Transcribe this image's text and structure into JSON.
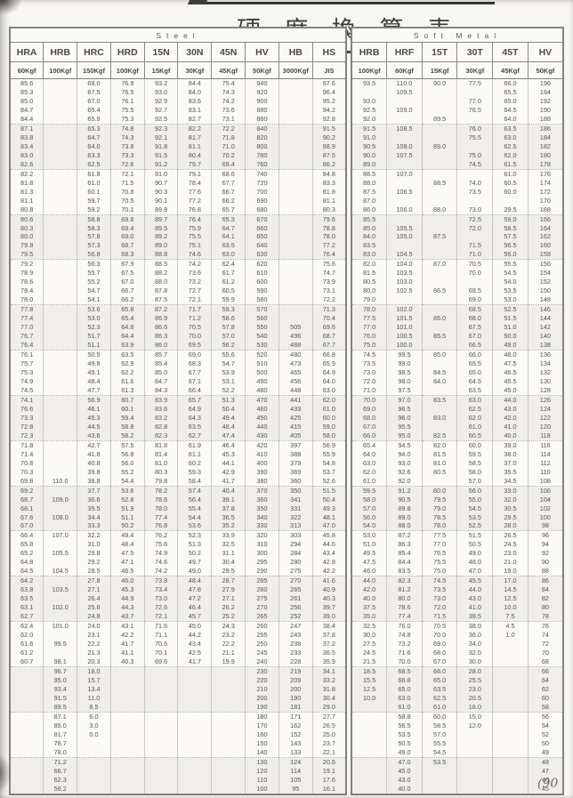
{
  "page": {
    "title": "硬 度 換 算 表",
    "page_marker": "(90"
  },
  "steel": {
    "section_title": "Steel",
    "columns": [
      "HRA",
      "HRB",
      "HRC",
      "HRD",
      "15N",
      "30N",
      "45N",
      "HV",
      "HB",
      "HS"
    ],
    "loads": [
      "60Kgf",
      "100Kgf",
      "150Kgf",
      "100Kgf",
      "15Kgf",
      "30Kgf",
      "45Kgf",
      "50Kgf",
      "3000Kgf",
      "JIS"
    ],
    "rows": [
      "85.6||68.0|76.9|93.2|84.4|75.4|940||97.6",
      "85.3||67.5|76.5|93.0|84.0|74.3|920||96.4",
      "85.0||67.0|76.1|92.9|83.6|74.2|900||95.2",
      "84.7||65.4|75.5|92.7|83.1|73.6|880||94.2",
      "84.4||65.9|75.3|92.5|82.7|73.1|860||92.8",
      "87.1||65.3|74.8|92.3|82.2|72.2|840||91.5",
      "83.8||64.7|74.3|92.1|81.7|71.8|820||90.2",
      "83.4||64.0|73.8|91.8|81.1|71.0|800||88.9",
      "83.0||63.3|73.3|91.5|80.4|70.2|780||87.5",
      "82.6||62.5|72.6|91.2|79.7|69.4|760||86.2",
      "82.2||61.8|72.1|91.0|79.1|68.6|740||84.8",
      "81.8||61.0|71.5|90.7|78.4|67.7|720||83.3",
      "81.3||60.1|70.8|90.3|77.6|66.7|700||81.8",
      "81.1||59.7|70.5|90.1|77.2|66.2|690||81.1",
      "80.8||59.2|70.1|89.8|76.8|65.7|680||80.3",
      "80.6||58.8|69.8|89.7|76.4|65.3|670||79.6",
      "80.3||58.3|69.4|89.5|75.9|64.7|660||78.8",
      "80.0||57.8|69.0|89.2|75.5|64.1|650||78.0",
      "79.8||57.3|68.7|89.0|75.1|63.5|640||77.2",
      "79.5||56.8|68.3|88.8|74.6|63.0|630||76.4",
      "79.2||56.3|67.9|88.5|74.2|62.4|620||75.6",
      "78.9||55.7|67.5|88.2|73.6|61.7|610||74.7",
      "78.6||55.2|67.0|88.0|73.2|61.2|600||73.9",
      "78.4||54.7|66.7|87.8|72.7|60.5|590||73.1",
      "78.0||54.1|66.2|87.5|72.1|59.9|580||72.2",
      "77.8||53.6|65.8|87.2|71.7|59.3|570||71.3",
      "77.4||53.0|65.4|86.9|71.2|58.6|560||70.4",
      "77.0||52.3|64.8|86.6|70.5|57.8|550|505|69.6",
      "76.7||51.7|64.4|86.3|70.0|57.0|540|496|68.7",
      "76.4||51.1|63.9|86.0|69.5|56.2|530|488|67.7",
      "76.1||50.5|63.5|85.7|69.0|55.6|520|480|66.8",
      "75.7||49.8|62.9|85.4|68.3|54.7|510|473|65.9",
      "75.3||49.1|62.2|85.0|67.7|53.9|500|465|64.9",
      "74.9||48.4|61.6|84.7|67.1|53.1|490|456|64.0",
      "74.5||47.7|61.3|84.3|66.4|52.2|480|448|63.0",
      "74.1||56.9|60.7|83.9|65.7|51.3|470|441|62.0",
      "76.6||46.1|60.1|83.6|64.9|50.4|460|433|61.0",
      "73.3||45.3|59.4|83.2|64.3|49.4|450|425|60.0",
      "72.8||44.5|58.8|82.8|63.5|48.4|440|415|59.0",
      "72.3||43.6|58.2|82.3|62.7|47.4|430|405|58.0",
      "71.8||42.7|57.5|81.8|61.9|46.4|420|397|56.9",
      "71.4||41.8|56.8|81.4|61.1|45.3|410|388|55.9",
      "70.8||40.8|56.0|81.0|60.2|44.1|400|379|54.8",
      "70.3||39.8|55.2|80.3|59.3|42.9|390|369|53.7",
      "69.8|110.0|38.8|54.4|79.8|58.4|41.7|380|360|52.6",
      "69.2||37.7|53.6|78.2|57.4|40.4|370|350|51.5",
      "68.7|109.0|36.6|52.8|78.6|56.4|39.1|360|341|50.4",
      "68.1||35.5|51.9|78.0|55.4|37.8|350|331|49.3",
      "67.6|108.0|34.4|51.1|77.4|54.4|36.5|340|322|48.1",
      "67.0||33.3|50.2|76.8|53.6|35.2|330|313|47.0",
      "66.4|107.0|32.2|49.4|76.2|52.3|33.9|320|303|45.8",
      "65.8||31.0|48.4|75.6|51.3|32.5|310|294|44.6",
      "65.2|105.5|29.8|47.5|74.9|50.2|31.1|300|284|43.4",
      "64.8||29.2|47.1|74.6|49.7|30.4|295|280|42.8",
      "64.5|104.5|28.5|46.5|74.2|49.0|29.5|290|275|42.2",
      "64.2||27.8|46.0|73.8|48.4|28.7|285|270|41.6",
      "63.8|103.5|27.1|45.3|73.4|47.8|27.9|280|265|40.9",
      "63.5||26.4|44.9|73.0|47.2|27.1|275|261|40.3",
      "63.1|102.0|25.6|44.3|72.6|46.4|26.2|270|256|39.7",
      "62.7||24.8|43.7|72.1|45.7|25.2|265|252|39.0",
      "62.4|101.0|24.0|43.1|71.6|45.0|24.3|260|247|38.4",
      "62.0||23.1|42.2|71.1|44.2|23.2|255|243|37.8",
      "61.6|99.5|22.2|41.7|70.6|43.4|22.2|250|238|37.2",
      "61.2||21.3|41.1|70.1|42.5|21.1|245|233|36.5",
      "60.7|98.1|20.3|40.3|69.6|41.7|19.9|240|228|35.9",
      "|96.7|18.0|||||230|219|34.1",
      "|95.0|15.7|||||220|209|33.2",
      "|93.4|13.4|||||210|200|31.8",
      "|91.5|11.0|||||200|190|30.4",
      "|89.5|8.5|||||190|181|29.0",
      "|87.1|6.0|||||180|171|27.7",
      "|85.0|3.0|||||170|162|26.5",
      "|81.7|0.0|||||160|152|25.0",
      "|78.7||||||150|143|23.7",
      "|78.0||||||140|133|22.1",
      "|71.2||||||130|124|20.6",
      "|66.7||||||120|114|19.1",
      "|62.3||||||110|105|17.6",
      "|56.2||||||100|95|16.1"
    ]
  },
  "soft_metal": {
    "section_title": "Soft Metal",
    "columns": [
      "HRB",
      "HRF",
      "15T",
      "30T",
      "45T",
      "HV"
    ],
    "loads": [
      "100Kgf",
      "60Kgf",
      "15Kgf",
      "30Kgf",
      "45Kgf",
      "50Kgf"
    ],
    "rows": [
      "93.5|110.0|90.0|77.5|66.0|196",
      "|109.5|||65.5|194",
      "93.0|||77.0|65.0|192",
      "92.5|109.0||76.5|64.5|190",
      "92.0||89.5||64.0|188",
      "91.5|108.5||76.0|63.5|186",
      "91.0|||75.5|63.0|184",
      "90.5|108.0|89.0||62.5|182",
      "90.0|107.5||75.0|62.0|180",
      "89.0|||74.5|61.5|178",
      "88.5|107.0|||61.0|176",
      "88.0||88.5|74.0|60.5|174",
      "87.5|106.5||73.5|60.0|172",
      "87.0|||||170",
      "86.0|106.0|88.0|73.0|29.5|168",
      "85.5|||72.5|59.0|166",
      "85.0|105.5||72.0|58.5|164",
      "84.0|105.0|87.5||57.5|162",
      "83.5|||71.5|56.5|160",
      "83.0|104.5||71.0|56.0|158",
      "82.0|104.0|87.0|70.5|55.5|156",
      "81.5|103.5||70.0|54.5|154",
      "80.5|103.0|||54.0|152",
      "80.0|102.5|86.5|69.5|53.5|150",
      "79.0|||69.0|53.0|148",
      "78.0|102.0||68.5|52.5|146",
      "77.5|101.5|86.0|68.0|51.5|144",
      "77.0|101.0||67.5|51.0|142",
      "76.0|100.5|85.5|67.0|50.0|140",
      "75.0|100.0||66.5|49.0|138",
      "74.5|99.5|85.0|66.0|48.0|136",
      "73.5|99.0||65.5|47.5|134",
      "73.0|98.5|84.5|65.0|46.5|132",
      "72.0|98.0|84.0|64.5|45.5|130",
      "71.0|97.5||63.5|45.0|128",
      "70.0|97.0|83.5|63.0|44.0|126",
      "69.0|96.5||62.5|43.0|124",
      "68.0|96.0|83.0|62.0|42.0|122",
      "67.0|95.5||61.0|41.0|120",
      "66.0|95.0|82.5|60.5|40.0|118",
      "65.4|94.5|82.0|60.0|39.0|116",
      "64.0|94.0|81.5|59.5|38.0|114",
      "63.0|93.0|81.0|58.5|37.0|112",
      "62.0|92.6|80.5|58.0|35.5|110",
      "61.0|92.0||57.0|34.5|108",
      "59.5|91.2|80.0|56.0|33.0|106",
      "58.0|90.5|79.5|55.0|32.0|104",
      "57.0|89.8|79.0|54.5|30.5|102",
      "56.0|89.0|78.5|53.5|29.5|100",
      "54.0|88.0|78.0|52.5|28.0|98",
      "53.0|87.2|77.5|51.5|26.5|96",
      "51.0|86.3|77.0|50.5|24.5|94",
      "49.5|85.4|76.5|49.0|23.0|92",
      "47.5|84.4|75.5|48.0|21.0|90",
      "46.0|83.5|75.0|47.0|19.0|88",
      "44.0|82.3|74.5|45.5|17.0|86",
      "42.0|81.2|73.5|44.0|14.5|84",
      "40.0|80.0|73.0|43.0|12.5|82",
      "37.5|78.6|72.0|41.0|10.0|80",
      "35.0|77.4|71.5|39.5|7.5|78",
      "32.5|76.0|70.5|38.0|4.5|76",
      "30.0|74.8|70.0|36.0|1.0|74",
      "27.5|73.2|69.0|34.0||72",
      "24.5|71.6|68.0|32.0||70",
      "21.5|70.0|67.0|30.0||68",
      "18.5|68.5|66.0|28.0||66",
      "15.5|66.8|65.0|25.5||64",
      "12.5|65.0|63.5|23.0||62",
      "10.0|63.0|62.5|20.5||60",
      "|61.0|61.0|18.0||58",
      "|58.8|60.0|15.0||56",
      "|56.5|58.5|12.0||54",
      "|53.5|57.0|||52",
      "|50.5|55.5|||50",
      "|49.0|54.5|||49",
      "|47.0|53.5|||48",
      "|45.0||||47",
      "|43.0||||46",
      "|40.0||||45"
    ]
  }
}
